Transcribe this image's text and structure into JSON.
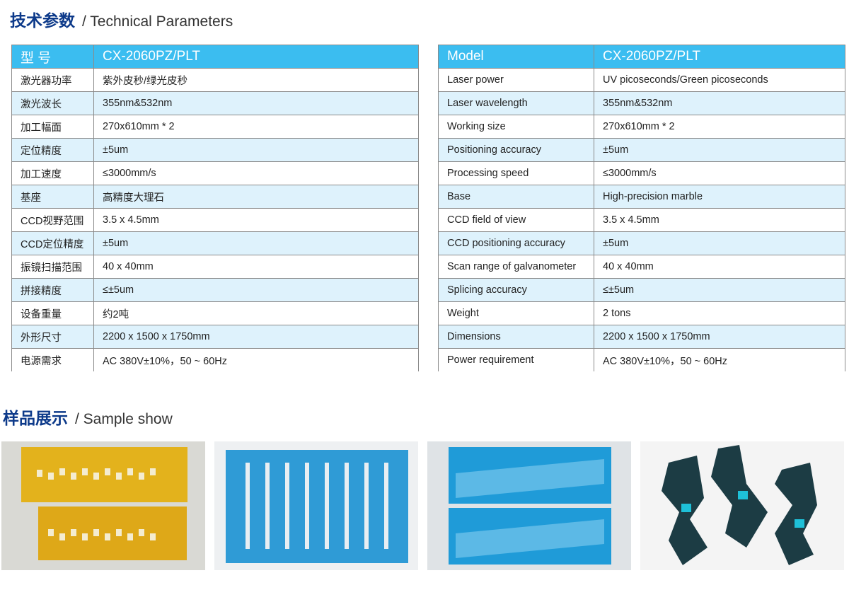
{
  "section1": {
    "title_cn": "技术参数",
    "title_en": "/ Technical Parameters"
  },
  "section2": {
    "title_cn": "样品展示",
    "title_en": "/ Sample show"
  },
  "table_cn": {
    "header": [
      "型  号",
      "CX-2060PZ/PLT"
    ],
    "rows": [
      [
        "激光器功率",
        "紫外皮秒/绿光皮秒"
      ],
      [
        "激光波长",
        "355nm&532nm"
      ],
      [
        "加工幅面",
        "270x610mm * 2"
      ],
      [
        "定位精度",
        "±5um"
      ],
      [
        "加工速度",
        "≤3000mm/s"
      ],
      [
        "基座",
        "高精度大理石"
      ],
      [
        "CCD视野范围",
        "3.5 x 4.5mm"
      ],
      [
        "CCD定位精度",
        "±5um"
      ],
      [
        "振镜扫描范围",
        "40 x 40mm"
      ],
      [
        "拼接精度",
        "≤±5um"
      ],
      [
        "设备重量",
        "约2吨"
      ],
      [
        "外形尺寸",
        "2200 x 1500 x 1750mm"
      ],
      [
        "电源需求",
        "AC 380V±10%，50 ~ 60Hz"
      ]
    ]
  },
  "table_en": {
    "header": [
      "Model",
      "CX-2060PZ/PLT"
    ],
    "rows": [
      [
        "Laser power",
        "UV picoseconds/Green picoseconds"
      ],
      [
        "Laser wavelength",
        "355nm&532nm"
      ],
      [
        "Working size",
        "270x610mm * 2"
      ],
      [
        "Positioning accuracy",
        "±5um"
      ],
      [
        "Processing speed",
        "≤3000mm/s"
      ],
      [
        "Base",
        "High-precision marble"
      ],
      [
        "CCD field of view",
        "3.5 x 4.5mm"
      ],
      [
        "CCD positioning accuracy",
        "±5um"
      ],
      [
        "Scan range of galvanometer",
        "40 x 40mm"
      ],
      [
        "Splicing accuracy",
        "≤±5um"
      ],
      [
        "Weight",
        " 2 tons"
      ],
      [
        "Dimensions",
        "2200 x 1500 x 1750mm"
      ],
      [
        "Power requirement",
        "AC 380V±10%，50 ~ 60Hz"
      ]
    ]
  },
  "colors": {
    "header_bg": "#3bbdf0",
    "alt_row": "#def2fc",
    "title": "#0d3a8a"
  },
  "samples": [
    "yellow-polyimide-sample",
    "blue-film-sample",
    "blue-perforated-sample",
    "dark-flex-sample"
  ]
}
